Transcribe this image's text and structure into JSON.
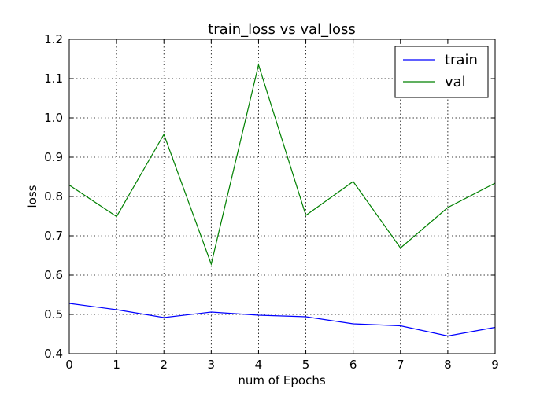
{
  "chart_data": {
    "type": "line",
    "title": "train_loss vs val_loss",
    "xlabel": "num of Epochs",
    "ylabel": "loss",
    "x": [
      0,
      1,
      2,
      3,
      4,
      5,
      6,
      7,
      8,
      9
    ],
    "xlim": [
      0,
      9
    ],
    "ylim": [
      0.4,
      1.2
    ],
    "xticks": [
      "0",
      "1",
      "2",
      "3",
      "4",
      "5",
      "6",
      "7",
      "8",
      "9"
    ],
    "yticks": [
      "0.4",
      "0.5",
      "0.6",
      "0.7",
      "0.8",
      "0.9",
      "1.0",
      "1.1",
      "1.2"
    ],
    "grid": true,
    "legend_position": "top-right",
    "series": [
      {
        "name": "train",
        "color": "#0000ff",
        "values": [
          0.528,
          0.512,
          0.492,
          0.506,
          0.498,
          0.494,
          0.476,
          0.471,
          0.445,
          0.467
        ]
      },
      {
        "name": "val",
        "color": "#008000",
        "values": [
          0.829,
          0.749,
          0.958,
          0.628,
          1.135,
          0.752,
          0.838,
          0.669,
          0.772,
          0.834
        ]
      }
    ]
  }
}
